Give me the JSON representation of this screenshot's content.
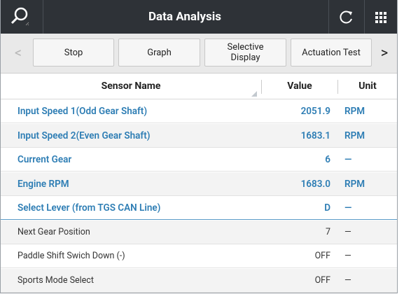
{
  "header": {
    "title": "Data Analysis"
  },
  "toolbar": {
    "prev": "<",
    "next": ">",
    "buttons": [
      "Stop",
      "Graph",
      "Selective Display",
      "Actuation Test"
    ]
  },
  "table": {
    "columns": [
      "Sensor Name",
      "Value",
      "Unit"
    ],
    "rows": [
      [
        "Input Speed 1(Odd Gear Shaft)",
        "2051.9",
        "RPM"
      ],
      [
        "Input Speed 2(Even Gear Shaft)",
        "1683.1",
        "RPM"
      ],
      [
        "Current Gear",
        "6",
        "—"
      ],
      [
        "Engine RPM",
        "1683.0",
        "RPM"
      ],
      [
        "Select Lever (from TGS CAN Line)",
        "D",
        "—"
      ],
      [
        "Next Gear Position",
        "7",
        "—"
      ],
      [
        "Paddle Shift Swich Down (-)",
        "OFF",
        "—"
      ],
      [
        "Sports Mode Select",
        "OFF",
        "—"
      ]
    ],
    "selected_rows": 5
  }
}
